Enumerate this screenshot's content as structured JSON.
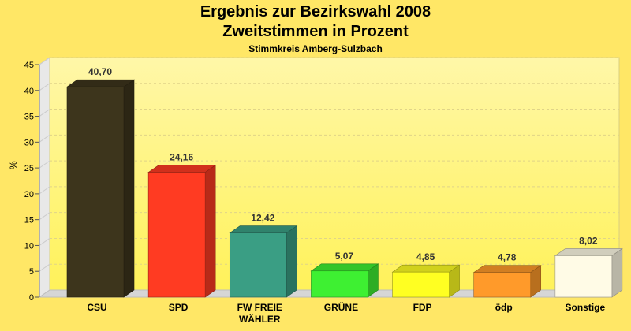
{
  "chart_data": {
    "type": "bar",
    "title": "Ergebnis zur Bezirkswahl 2008",
    "subtitle": "Zweitstimmen in Prozent",
    "caption": "Stimmkreis Amberg-Sulzbach",
    "ylabel": "%",
    "xlabel": "",
    "ylim": [
      0,
      45
    ],
    "yticks": [
      0,
      5,
      10,
      15,
      20,
      25,
      30,
      35,
      40,
      45
    ],
    "grid": true,
    "categories": [
      "CSU",
      "SPD",
      "FW FREIE WÄHLER",
      "GRÜNE",
      "FDP",
      "ödp",
      "Sonstige"
    ],
    "category_lines": [
      [
        "CSU"
      ],
      [
        "SPD"
      ],
      [
        "FW FREIE",
        "WÄHLER"
      ],
      [
        "GRÜNE"
      ],
      [
        "FDP"
      ],
      [
        "ödp"
      ],
      [
        "Sonstige"
      ]
    ],
    "values": [
      40.7,
      24.16,
      12.42,
      5.07,
      4.85,
      4.78,
      8.02
    ],
    "value_labels": [
      "40,70",
      "24,16",
      "12,42",
      "5,07",
      "4,85",
      "4,78",
      "8,02"
    ],
    "colors": [
      "#3d351c",
      "#ff3b22",
      "#3a9e84",
      "#3ef032",
      "#ffff22",
      "#ff9a2a",
      "#fffbe6"
    ]
  }
}
